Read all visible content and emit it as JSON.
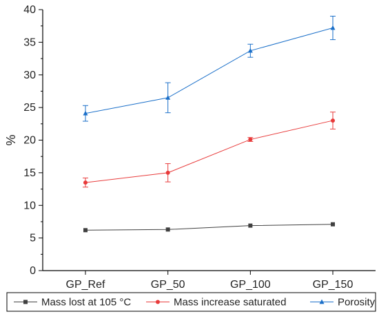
{
  "chart_data": {
    "type": "line",
    "title": "",
    "xlabel": "",
    "ylabel": "%",
    "categories": [
      "GP_Ref",
      "GP_50",
      "GP_100",
      "GP_150"
    ],
    "ylim": [
      0,
      40
    ],
    "yticks": [
      0,
      5,
      10,
      15,
      20,
      25,
      30,
      35,
      40
    ],
    "grid": false,
    "legend_position": "bottom",
    "series": [
      {
        "name": "Mass lost at 105 °C",
        "marker": "square",
        "color": "#404040",
        "values": [
          6.2,
          6.3,
          6.9,
          7.1
        ],
        "errors": [
          0.1,
          0.1,
          0.1,
          0.1
        ]
      },
      {
        "name": "Mass increase saturated",
        "marker": "circle",
        "color": "#e83a3a",
        "values": [
          13.5,
          15.0,
          20.1,
          23.0
        ],
        "errors": [
          0.7,
          1.4,
          0.3,
          1.3
        ]
      },
      {
        "name": "Porosity",
        "marker": "triangle",
        "color": "#1a6fc9",
        "values": [
          24.1,
          26.5,
          33.7,
          37.2
        ],
        "errors": [
          1.2,
          2.3,
          1.0,
          1.8
        ]
      }
    ]
  }
}
